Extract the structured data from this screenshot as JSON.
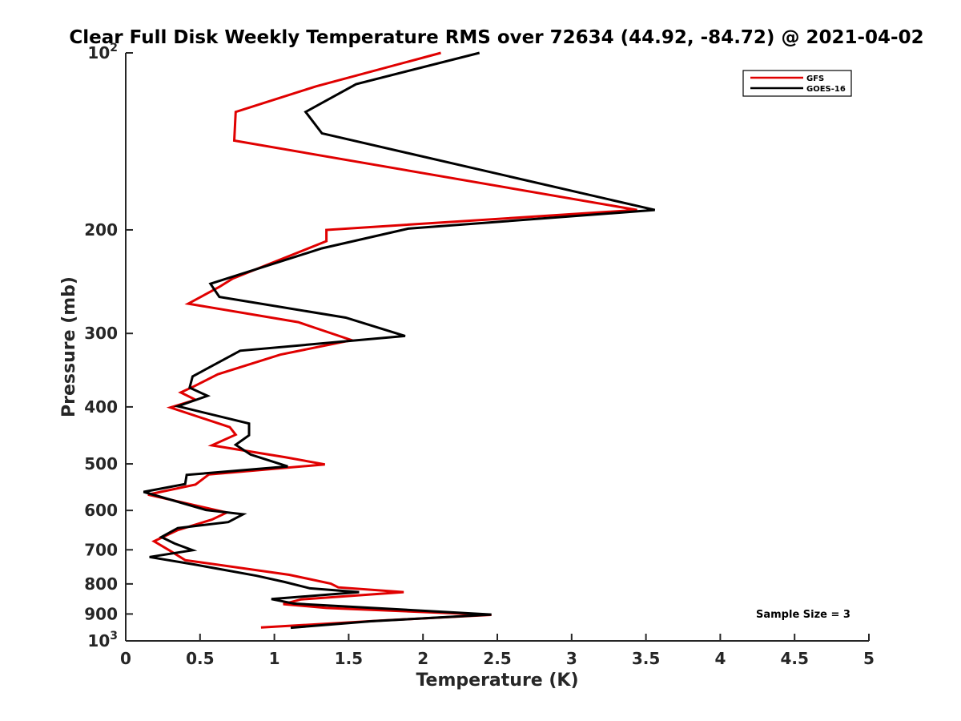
{
  "chart_data": {
    "type": "line",
    "title": "Clear Full Disk Weekly Temperature RMS over 72634 (44.92, -84.72) @ 2021-04-02",
    "xlabel": "Temperature (K)",
    "ylabel": "Pressure (mb)",
    "xlim": [
      0,
      5
    ],
    "ylim": [
      100,
      1000
    ],
    "y_scale": "log",
    "y_reversed": true,
    "grid": false,
    "legend_position": "top-right",
    "x_ticks": [
      0,
      0.5,
      1,
      1.5,
      2,
      2.5,
      3,
      3.5,
      4,
      4.5,
      5
    ],
    "x_tick_labels": [
      "0",
      "0.5",
      "1",
      "1.5",
      "2",
      "2.5",
      "3",
      "3.5",
      "4",
      "4.5",
      "5"
    ],
    "y_ticks": [
      100,
      200,
      300,
      400,
      500,
      600,
      700,
      800,
      900,
      1000
    ],
    "y_tick_labels": [
      {
        "base": "10",
        "exp": "2"
      },
      {
        "base": "200",
        "exp": ""
      },
      {
        "base": "300",
        "exp": ""
      },
      {
        "base": "400",
        "exp": ""
      },
      {
        "base": "500",
        "exp": ""
      },
      {
        "base": "600",
        "exp": ""
      },
      {
        "base": "700",
        "exp": ""
      },
      {
        "base": "800",
        "exp": ""
      },
      {
        "base": "900",
        "exp": ""
      },
      {
        "base": "10",
        "exp": "3"
      }
    ],
    "annotation": "Sample Size = 3",
    "series": [
      {
        "name": "GFS",
        "color": "#e00000",
        "x": [
          2.12,
          1.28,
          0.74,
          0.73,
          3.44,
          1.35,
          1.35,
          0.72,
          0.63,
          0.42,
          1.16,
          1.52,
          1.04,
          0.62,
          0.46,
          0.37,
          0.47,
          0.3,
          0.7,
          0.74,
          0.58,
          1.07,
          1.34,
          0.56,
          0.47,
          0.15,
          0.68,
          0.58,
          0.35,
          0.19,
          0.3,
          0.4,
          1.1,
          1.38,
          1.43,
          1.87,
          1.18,
          1.06,
          1.35,
          2.46,
          1.73,
          0.91
        ],
        "y": [
          100,
          114,
          126,
          141,
          185,
          200,
          209,
          242,
          250,
          267,
          287,
          308,
          326,
          352,
          369,
          378,
          389,
          401,
          433,
          446,
          465,
          487,
          501,
          521,
          542,
          564,
          605,
          622,
          648,
          677,
          703,
          729,
          772,
          799,
          811,
          826,
          850,
          866,
          879,
          903,
          923,
          949
        ]
      },
      {
        "name": "GOES-16",
        "color": "#000000",
        "x": [
          2.38,
          1.55,
          1.21,
          1.32,
          3.56,
          1.9,
          1.32,
          0.57,
          0.63,
          1.48,
          1.88,
          0.77,
          0.45,
          0.43,
          0.55,
          0.35,
          0.83,
          0.83,
          0.74,
          0.84,
          1.09,
          0.41,
          0.4,
          0.12,
          0.54,
          0.79,
          0.69,
          0.35,
          0.24,
          0.33,
          0.45,
          0.16,
          0.47,
          0.88,
          1.07,
          1.24,
          1.57,
          0.98,
          1.13,
          2.46,
          1.65,
          1.11
        ],
        "y": [
          100,
          113,
          126,
          137,
          185,
          199,
          215,
          247,
          260,
          282,
          303,
          321,
          355,
          371,
          383,
          399,
          427,
          447,
          464,
          482,
          505,
          522,
          541,
          558,
          599,
          609,
          628,
          643,
          666,
          683,
          701,
          720,
          742,
          775,
          794,
          814,
          826,
          849,
          864,
          902,
          926,
          950
        ]
      }
    ]
  }
}
